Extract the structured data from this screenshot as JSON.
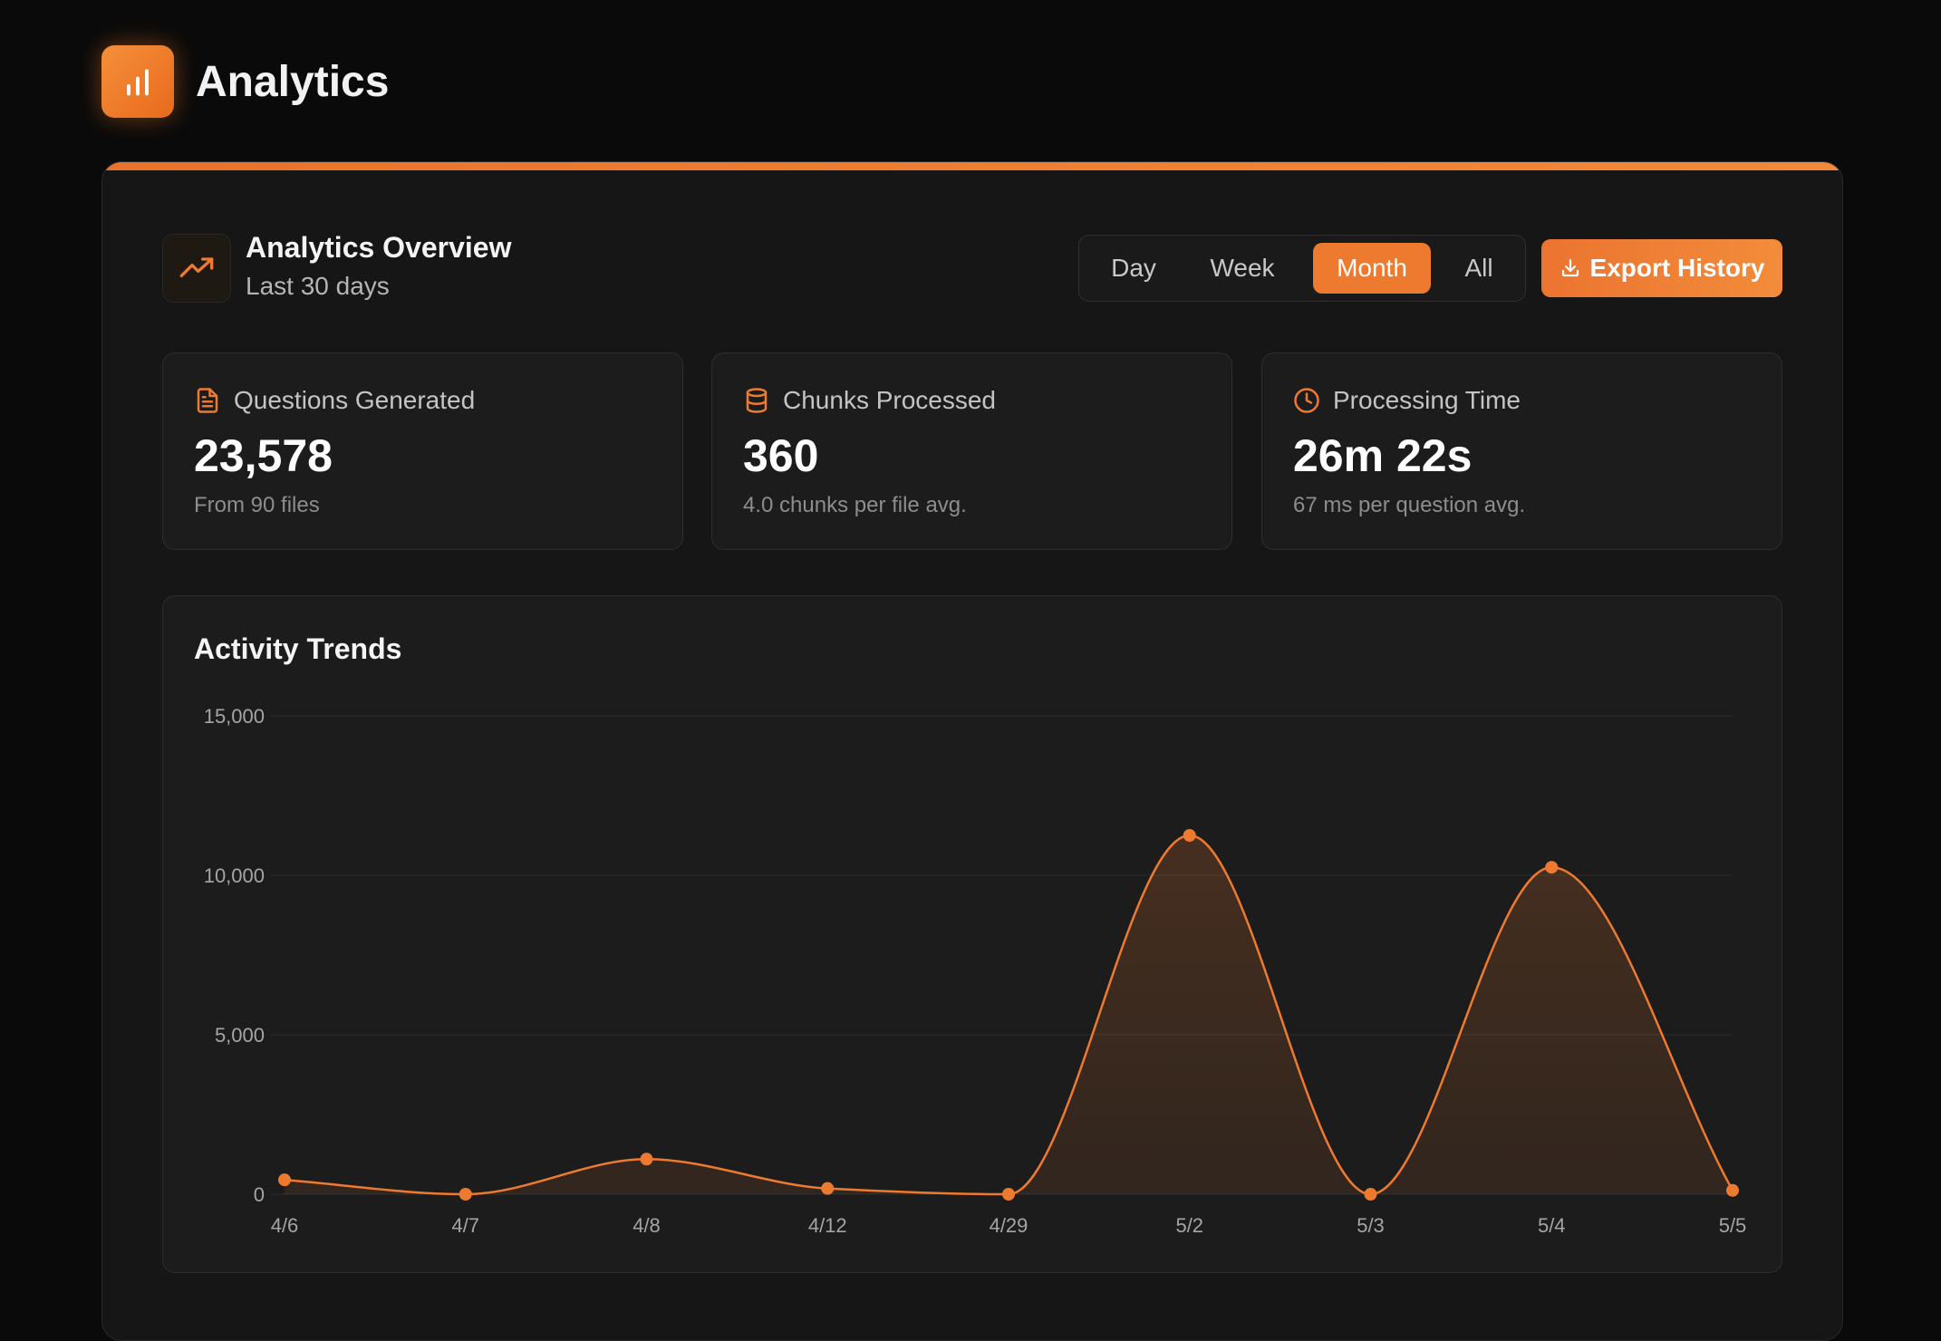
{
  "app": {
    "title": "Analytics",
    "logo_icon": "bar-chart-icon"
  },
  "overview": {
    "icon": "trending-up-icon",
    "title": "Analytics Overview",
    "subtitle": "Last 30 days",
    "ranges": [
      "Day",
      "Week",
      "Month",
      "All"
    ],
    "active_range": "Month",
    "export_label": "Export History",
    "export_icon": "download-icon"
  },
  "stats": [
    {
      "icon": "document-icon",
      "label": "Questions Generated",
      "value": "23,578",
      "note": "From 90 files"
    },
    {
      "icon": "database-icon",
      "label": "Chunks Processed",
      "value": "360",
      "note": "4.0 chunks per file avg."
    },
    {
      "icon": "clock-icon",
      "label": "Processing Time",
      "value": "26m 22s",
      "note": "67 ms per question avg."
    }
  ],
  "colors": {
    "accent": "#ee7a2f",
    "background": "#0a0a0a",
    "panel": "#161616",
    "card": "#1c1c1c"
  },
  "chart": {
    "title": "Activity Trends"
  },
  "chart_data": {
    "type": "area",
    "title": "Activity Trends",
    "categories": [
      "4/6",
      "4/7",
      "4/8",
      "4/12",
      "4/29",
      "5/2",
      "5/3",
      "5/4",
      "5/5"
    ],
    "values": [
      450,
      0,
      1100,
      180,
      0,
      11250,
      0,
      10250,
      120
    ],
    "y_ticks": [
      "0",
      "5,000",
      "10,000",
      "15,000"
    ],
    "ylim": [
      0,
      15000
    ],
    "grid": true,
    "legend": "none"
  }
}
